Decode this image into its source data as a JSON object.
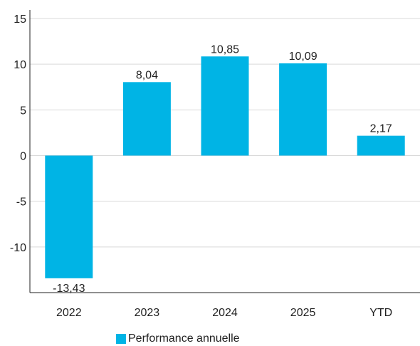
{
  "chart_data": {
    "type": "bar",
    "categories": [
      "2022",
      "2023",
      "2024",
      "2025",
      "YTD"
    ],
    "series": [
      {
        "name": "Performance annuelle",
        "values": [
          -13.43,
          8.04,
          10.85,
          10.09,
          2.17
        ],
        "color": "#00b4e5"
      }
    ],
    "data_labels": [
      "-13,43",
      "8,04",
      "10,85",
      "10,09",
      "2,17"
    ],
    "y_ticks": [
      15,
      10,
      5,
      0,
      -5,
      -10
    ],
    "y_tick_labels": [
      "15",
      "10",
      "5",
      "0",
      "-5",
      "-10"
    ],
    "ylim": [
      -15,
      15
    ],
    "grid": true,
    "legend_position": "bottom",
    "title": "",
    "xlabel": "",
    "ylabel": ""
  },
  "legend": {
    "label": "Performance annuelle",
    "color": "#00b4e5"
  }
}
